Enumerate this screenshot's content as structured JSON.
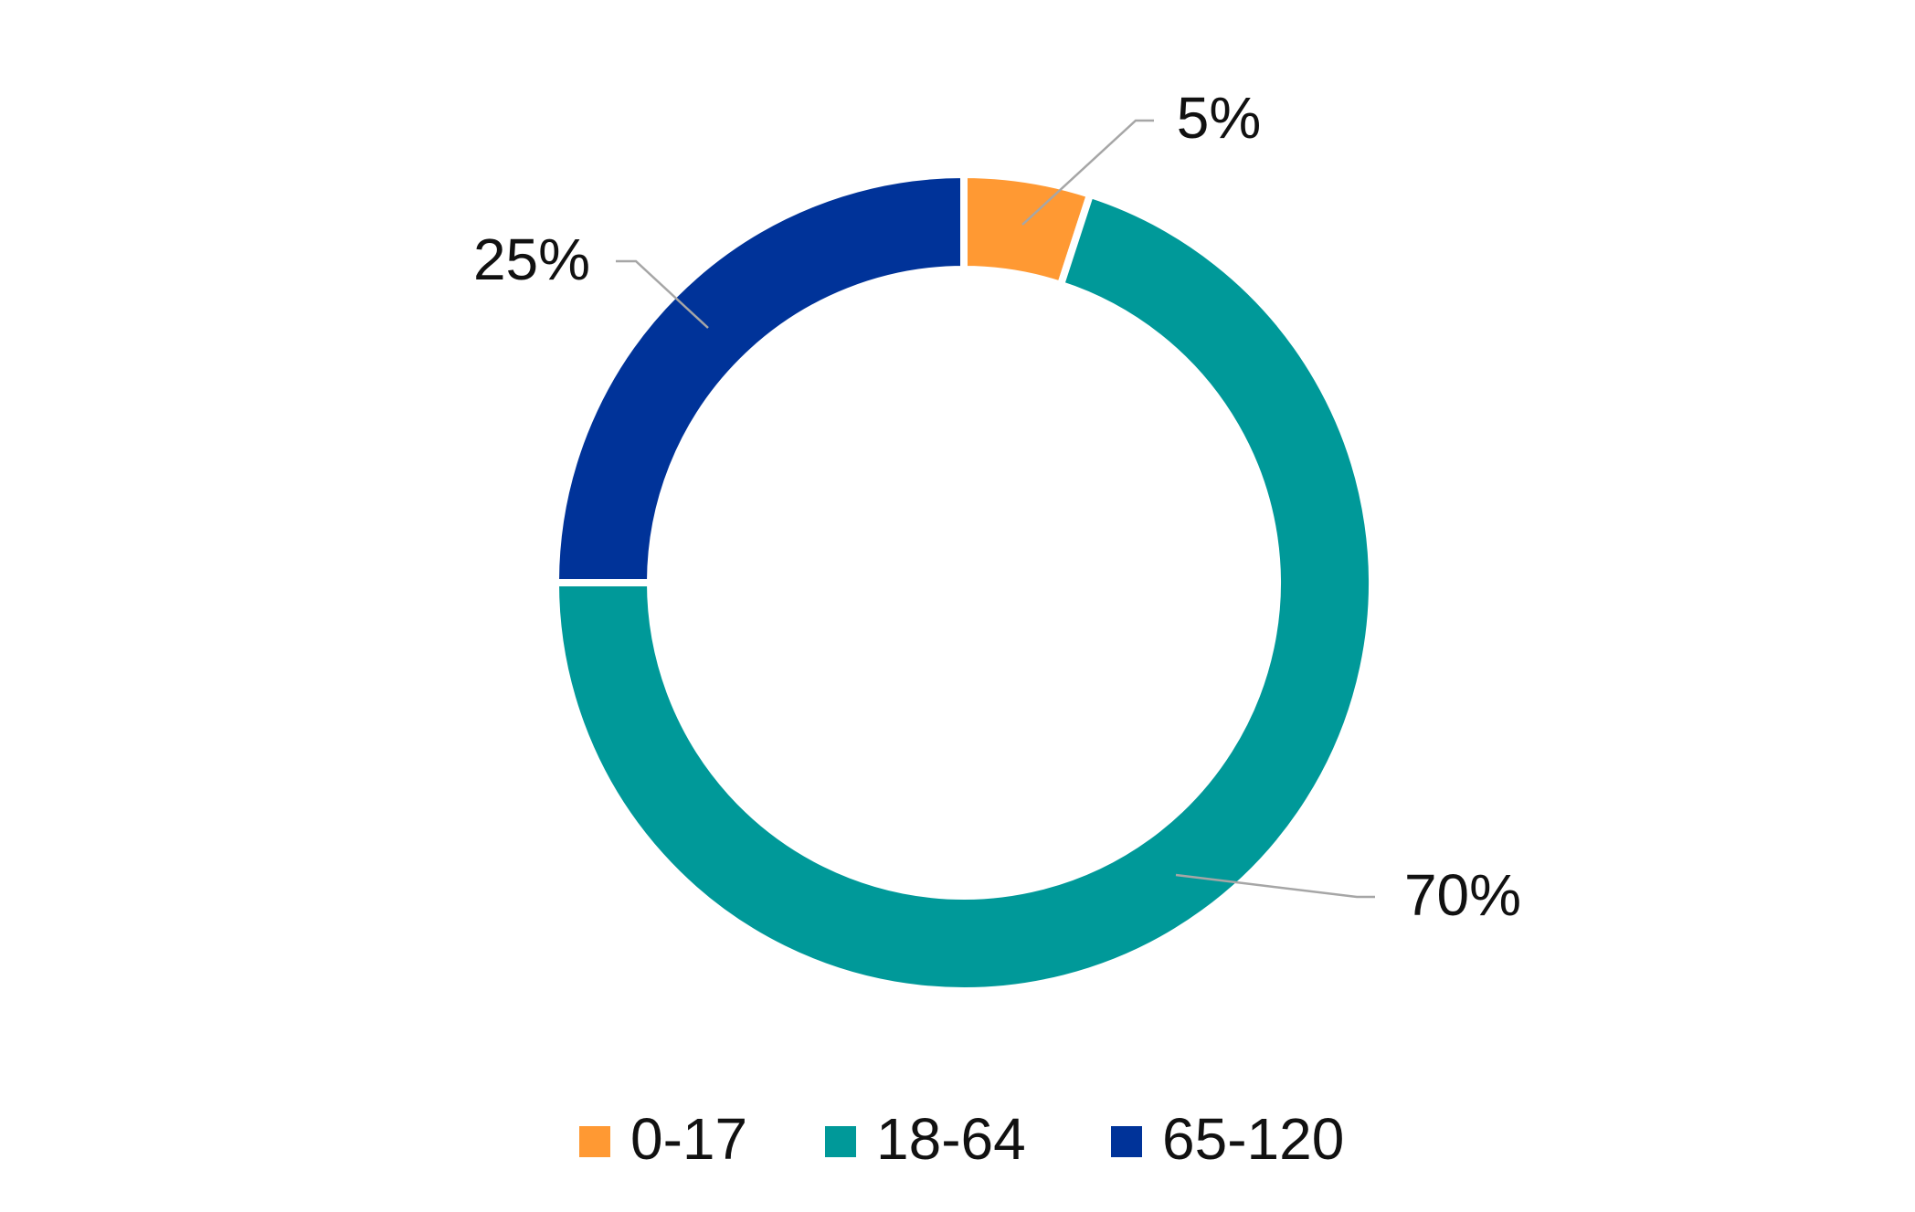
{
  "chart_data": {
    "type": "doughnut",
    "categories": [
      "0-17",
      "18-64",
      "65-120"
    ],
    "values": [
      5,
      70,
      25
    ],
    "value_labels": [
      "5%",
      "70%",
      "25%"
    ],
    "colors": [
      "#ff9933",
      "#009999",
      "#003399"
    ],
    "legend": "bottom"
  }
}
